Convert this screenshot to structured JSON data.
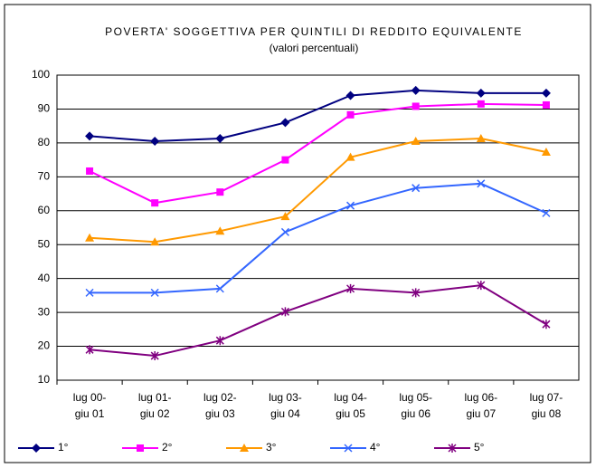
{
  "chart_data": {
    "type": "line",
    "title": "POVERTA' SOGGETTIVA PER QUINTILI DI REDDITO EQUIVALENTE",
    "subtitle": "(valori percentuali)",
    "categories": [
      "lug 00-\ngiu 01",
      "lug 01-\ngiu 02",
      "lug 02-\ngiu 03",
      "lug 03-\ngiu 04",
      "lug 04-\ngiu 05",
      "lug 05-\ngiu 06",
      "lug 06-\ngiu 07",
      "lug 07-\ngiu 08"
    ],
    "series": [
      {
        "name": "1°",
        "color": "#000080",
        "marker": "diamond",
        "values": [
          82,
          80.5,
          81.3,
          86,
          94,
          95.5,
          94.7,
          94.7
        ]
      },
      {
        "name": "2°",
        "color": "#ff00ff",
        "marker": "square",
        "values": [
          71.7,
          62.3,
          65.5,
          75,
          88.3,
          90.8,
          91.5,
          91.2
        ]
      },
      {
        "name": "3°",
        "color": "#ff9900",
        "marker": "triangle",
        "values": [
          52,
          50.8,
          54,
          58.3,
          75.8,
          80.5,
          81.3,
          77.3
        ]
      },
      {
        "name": "4°",
        "color": "#3366ff",
        "marker": "x",
        "values": [
          35.8,
          35.8,
          37,
          53.7,
          61.5,
          66.7,
          68,
          59.3
        ]
      },
      {
        "name": "5°",
        "color": "#800080",
        "marker": "star",
        "values": [
          19,
          17.2,
          21.7,
          30.2,
          37,
          35.8,
          38,
          26.5
        ]
      }
    ],
    "ylim": [
      10,
      100
    ],
    "yticks": [
      10,
      20,
      30,
      40,
      50,
      60,
      70,
      80,
      90,
      100
    ],
    "grid": true,
    "legend": "bottom"
  }
}
